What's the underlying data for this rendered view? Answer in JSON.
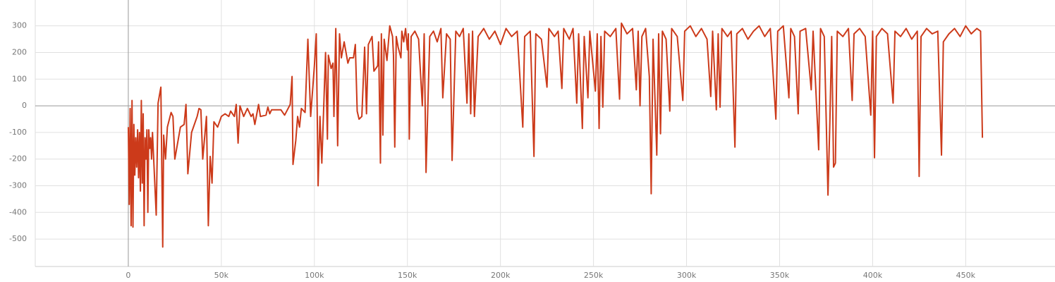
{
  "chart_data": {
    "type": "line",
    "xlim": [
      -50000,
      498000
    ],
    "ylim": [
      -603,
      397
    ],
    "xticks": [
      0,
      {
        "value": 50000,
        "label": "50k"
      },
      {
        "value": 100000,
        "label": "100k"
      },
      {
        "value": 150000,
        "label": "150k"
      },
      {
        "value": 200000,
        "label": "200k"
      },
      {
        "value": 250000,
        "label": "250k"
      },
      {
        "value": 300000,
        "label": "300k"
      },
      {
        "value": 350000,
        "label": "350k"
      },
      {
        "value": 400000,
        "label": "400k"
      },
      {
        "value": 450000,
        "label": "450k"
      }
    ],
    "yticks": [
      -500,
      -400,
      -300,
      -200,
      -100,
      0,
      100,
      200,
      300
    ],
    "grid": true,
    "x": [
      0,
      500,
      1000,
      1500,
      2000,
      2500,
      3000,
      3500,
      4000,
      4500,
      5000,
      5500,
      6000,
      6500,
      7000,
      7500,
      8000,
      8500,
      9000,
      9500,
      10000,
      10500,
      11000,
      11500,
      12000,
      12500,
      13000,
      15000,
      16000,
      17500,
      18500,
      19000,
      20000,
      21000,
      23000,
      24000,
      25000,
      28000,
      30000,
      31000,
      32000,
      34000,
      37000,
      38000,
      39000,
      40000,
      42000,
      43000,
      44000,
      45000,
      46000,
      48000,
      50000,
      52000,
      54000,
      55000,
      57000,
      58000,
      59000,
      60000,
      62000,
      64000,
      66000,
      67000,
      68000,
      70000,
      71000,
      74000,
      75000,
      76000,
      77000,
      82000,
      84000,
      87000,
      88000,
      88500,
      90000,
      91000,
      92000,
      93000,
      95000,
      96500,
      98000,
      100000,
      101000,
      102000,
      103000,
      104000,
      106000,
      107000,
      107500,
      109000,
      110000,
      110500,
      111500,
      112500,
      113500,
      114500,
      116000,
      117000,
      118000,
      119000,
      121000,
      122000,
      123000,
      124000,
      125500,
      127000,
      128000,
      129000,
      131000,
      132000,
      134000,
      134500,
      135500,
      136000,
      136800,
      137500,
      139000,
      140500,
      142000,
      142500,
      143200,
      144000,
      145000,
      146500,
      147000,
      148000,
      149000,
      150000,
      150500,
      151000,
      152000,
      154000,
      156000,
      158000,
      159000,
      160000,
      162000,
      164000,
      166000,
      168000,
      169000,
      171000,
      173000,
      174000,
      176000,
      178000,
      180000,
      182000,
      183000,
      184000,
      185000,
      186000,
      188000,
      191000,
      194000,
      197000,
      200000,
      203000,
      206000,
      209000,
      212000,
      213000,
      216000,
      218000,
      219000,
      222000,
      225000,
      226000,
      229000,
      231000,
      233000,
      234000,
      237000,
      239000,
      241000,
      242000,
      244000,
      245000,
      247000,
      248000,
      251000,
      252000,
      253000,
      254000,
      255000,
      256000,
      259000,
      262000,
      264000,
      265000,
      268000,
      271000,
      273000,
      274000,
      275000,
      276000,
      278000,
      280000,
      281000,
      282000,
      284000,
      285000,
      286000,
      287000,
      289000,
      291000,
      292000,
      295000,
      298000,
      299000,
      302000,
      305000,
      308000,
      311000,
      313000,
      314000,
      316000,
      317000,
      318000,
      319000,
      322000,
      324000,
      326000,
      327000,
      330000,
      333000,
      336000,
      339000,
      342000,
      345000,
      348000,
      349000,
      352000,
      355000,
      356000,
      358000,
      360000,
      361000,
      364000,
      367000,
      368000,
      371000,
      372000,
      374000,
      376000,
      377000,
      378000,
      379000,
      380000,
      381000,
      384000,
      387000,
      389000,
      390000,
      393000,
      396000,
      399000,
      400000,
      401000,
      402000,
      405000,
      408000,
      411000,
      412000,
      415000,
      418000,
      421000,
      424000,
      425000,
      426000,
      429000,
      432000,
      435000,
      437000,
      438000,
      441000,
      444000,
      447000,
      450000,
      453000,
      456000,
      458000,
      459000
    ],
    "series": [
      {
        "color": "#cc3a1a",
        "values": [
          -80,
          -370,
          -10,
          -450,
          20,
          -455,
          -70,
          -260,
          -120,
          -230,
          -90,
          -270,
          -100,
          -320,
          20,
          -290,
          -30,
          -450,
          -120,
          -200,
          -90,
          -400,
          -90,
          -160,
          -120,
          -200,
          -100,
          -410,
          10,
          70,
          -530,
          -110,
          -200,
          -80,
          -25,
          -40,
          -200,
          -80,
          -70,
          5,
          -255,
          -100,
          -40,
          -10,
          -15,
          -200,
          -40,
          -450,
          -190,
          -290,
          -60,
          -80,
          -40,
          -30,
          -40,
          -20,
          -40,
          5,
          -140,
          0,
          -40,
          -10,
          -40,
          -30,
          -70,
          5,
          -40,
          -35,
          -5,
          -30,
          -15,
          -15,
          -35,
          5,
          110,
          -220,
          -130,
          -40,
          -80,
          -10,
          -25,
          250,
          -40,
          150,
          270,
          -300,
          -40,
          -215,
          200,
          -125,
          190,
          140,
          160,
          -40,
          290,
          -150,
          270,
          180,
          240,
          200,
          160,
          180,
          180,
          230,
          -20,
          -50,
          -40,
          220,
          -30,
          230,
          260,
          130,
          150,
          240,
          -215,
          270,
          -110,
          250,
          170,
          300,
          260,
          190,
          -155,
          260,
          220,
          180,
          280,
          240,
          290,
          210,
          270,
          -125,
          260,
          280,
          250,
          0,
          270,
          -250,
          260,
          280,
          240,
          290,
          30,
          270,
          250,
          -205,
          280,
          260,
          290,
          10,
          270,
          -30,
          280,
          -40,
          260,
          290,
          250,
          280,
          230,
          290,
          260,
          280,
          -80,
          260,
          280,
          -190,
          270,
          250,
          70,
          290,
          260,
          280,
          65,
          290,
          250,
          290,
          10,
          270,
          -85,
          260,
          30,
          280,
          55,
          270,
          -85,
          260,
          -5,
          280,
          260,
          290,
          25,
          310,
          270,
          290,
          60,
          280,
          0,
          260,
          290,
          110,
          -330,
          250,
          -185,
          270,
          -105,
          280,
          250,
          -20,
          290,
          260,
          20,
          280,
          300,
          260,
          290,
          250,
          35,
          280,
          -15,
          270,
          -5,
          290,
          260,
          280,
          -155,
          270,
          290,
          250,
          280,
          300,
          260,
          290,
          -50,
          280,
          300,
          30,
          290,
          260,
          -30,
          280,
          290,
          60,
          280,
          -165,
          290,
          260,
          -335,
          -65,
          260,
          -230,
          -215,
          280,
          260,
          290,
          20,
          270,
          290,
          260,
          -35,
          280,
          -195,
          260,
          290,
          270,
          10,
          280,
          260,
          290,
          250,
          280,
          -265,
          260,
          290,
          270,
          280,
          -185,
          240,
          270,
          290,
          260,
          300,
          270,
          290,
          280,
          -120
        ]
      }
    ]
  }
}
